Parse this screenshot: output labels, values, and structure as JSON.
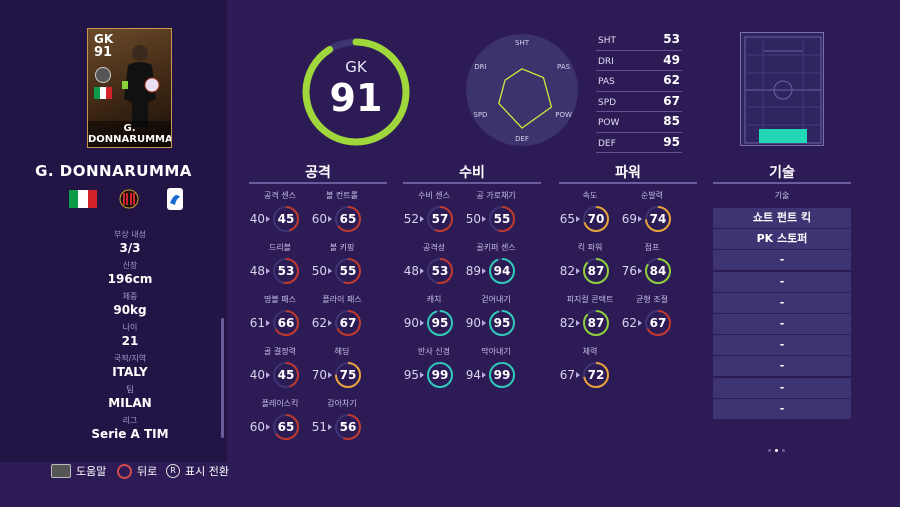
{
  "player": {
    "position": "GK",
    "overall": "91",
    "card_name": "G. DONNARUMMA",
    "name": "G. DONNARUMMA"
  },
  "info": [
    {
      "label": "부상 내성",
      "value": "3/3"
    },
    {
      "label": "신장",
      "value": "196cm"
    },
    {
      "label": "체중",
      "value": "90kg"
    },
    {
      "label": "나이",
      "value": "21"
    },
    {
      "label": "국적/지역",
      "value": "ITALY"
    },
    {
      "label": "팀",
      "value": "MILAN"
    },
    {
      "label": "리그",
      "value": "Serie A TIM"
    }
  ],
  "gauge": {
    "position": "GK",
    "overall": "91",
    "fraction": 0.91,
    "color": "#9ed83a"
  },
  "radar": {
    "labels": [
      "SHT",
      "PAS",
      "POW",
      "DEF",
      "SPD",
      "DRI"
    ],
    "values": [
      53,
      62,
      85,
      95,
      67,
      49
    ]
  },
  "summary_stats": [
    {
      "key": "SHT",
      "value": "53"
    },
    {
      "key": "DRI",
      "value": "49"
    },
    {
      "key": "PAS",
      "value": "62"
    },
    {
      "key": "SPD",
      "value": "67"
    },
    {
      "key": "POW",
      "value": "85"
    },
    {
      "key": "DEF",
      "value": "95"
    }
  ],
  "categories": [
    "공격",
    "수비",
    "파워",
    "기술"
  ],
  "attack": [
    {
      "label": "공격 센스",
      "base": "40",
      "value": "45"
    },
    {
      "label": "볼 컨트롤",
      "base": "60",
      "value": "65"
    },
    {
      "label": "드리블",
      "base": "48",
      "value": "53"
    },
    {
      "label": "볼 키핑",
      "base": "50",
      "value": "55"
    },
    {
      "label": "땅볼 패스",
      "base": "61",
      "value": "66"
    },
    {
      "label": "플라이 패스",
      "base": "62",
      "value": "67"
    },
    {
      "label": "골 결정력",
      "base": "40",
      "value": "45"
    },
    {
      "label": "헤딩",
      "base": "70",
      "value": "75"
    },
    {
      "label": "플레이스킥",
      "base": "60",
      "value": "65"
    },
    {
      "label": "감아차기",
      "base": "51",
      "value": "56"
    }
  ],
  "defense": [
    {
      "label": "수비 센스",
      "base": "52",
      "value": "57"
    },
    {
      "label": "공 가로채기",
      "base": "50",
      "value": "55"
    },
    {
      "label": "공격성",
      "base": "48",
      "value": "53"
    },
    {
      "label": "골키퍼 센스",
      "base": "89",
      "value": "94"
    },
    {
      "label": "캐치",
      "base": "90",
      "value": "95"
    },
    {
      "label": "걷어내기",
      "base": "90",
      "value": "95"
    },
    {
      "label": "반사 신경",
      "base": "95",
      "value": "99"
    },
    {
      "label": "막아내기",
      "base": "94",
      "value": "99"
    }
  ],
  "power": [
    {
      "label": "속도",
      "base": "65",
      "value": "70"
    },
    {
      "label": "순발력",
      "base": "69",
      "value": "74"
    },
    {
      "label": "킥 파워",
      "base": "82",
      "value": "87"
    },
    {
      "label": "점프",
      "base": "76",
      "value": "84"
    },
    {
      "label": "피지컬 콘택트",
      "base": "82",
      "value": "87"
    },
    {
      "label": "균형 조절",
      "base": "62",
      "value": "67"
    },
    {
      "label": "체력",
      "base": "67",
      "value": "72"
    }
  ],
  "skills": {
    "label": "기술",
    "items": [
      "쇼트 펀트 킥",
      "PK 스토퍼",
      "-",
      "-",
      "-",
      "-",
      "-",
      "-",
      "-",
      "-"
    ]
  },
  "footer": {
    "help": "도움말",
    "back": "뒤로",
    "toggle": "표시 전환"
  },
  "colors": {
    "ring_low": "#c0392b",
    "ring_mid": "#e8a33a",
    "ring_high": "#8fcf3a",
    "ring_top": "#30c9b7"
  }
}
